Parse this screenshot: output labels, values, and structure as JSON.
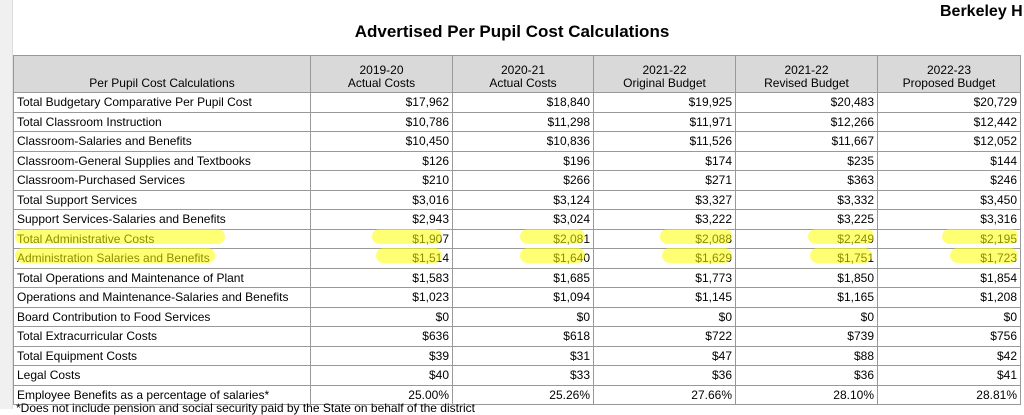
{
  "header": {
    "title": "Advertised Per Pupil Cost Calculations",
    "district": "Berkeley H"
  },
  "table": {
    "columns": [
      [
        "Per Pupil Cost Calculations"
      ],
      [
        "2019-20",
        "Actual Costs"
      ],
      [
        "2020-21",
        "Actual Costs"
      ],
      [
        "2021-22",
        "Original Budget"
      ],
      [
        "2021-22",
        "Revised Budget"
      ],
      [
        "2022-23",
        "Proposed Budget"
      ]
    ],
    "rows": [
      [
        "Total Budgetary Comparative Per Pupil Cost",
        "$17,962",
        "$18,840",
        "$19,925",
        "$20,483",
        "$20,729"
      ],
      [
        "Total Classroom Instruction",
        "$10,786",
        "$11,298",
        "$11,971",
        "$12,266",
        "$12,442"
      ],
      [
        "Classroom-Salaries and Benefits",
        "$10,450",
        "$10,836",
        "$11,526",
        "$11,667",
        "$12,052"
      ],
      [
        "Classroom-General Supplies and Textbooks",
        "$126",
        "$196",
        "$174",
        "$235",
        "$144"
      ],
      [
        "Classroom-Purchased Services",
        "$210",
        "$266",
        "$271",
        "$363",
        "$246"
      ],
      [
        "Total Support Services",
        "$3,016",
        "$3,124",
        "$3,327",
        "$3,332",
        "$3,450"
      ],
      [
        "Support Services-Salaries and Benefits",
        "$2,943",
        "$3,024",
        "$3,222",
        "$3,225",
        "$3,316"
      ],
      [
        "Total Administrative Costs",
        "$1,907",
        "$2,081",
        "$2,088",
        "$2,249",
        "$2,195"
      ],
      [
        "Administration Salaries and Benefits",
        "$1,514",
        "$1,640",
        "$1,629",
        "$1,751",
        "$1,723"
      ],
      [
        "Total Operations and Maintenance of Plant",
        "$1,583",
        "$1,685",
        "$1,773",
        "$1,850",
        "$1,854"
      ],
      [
        "Operations and Maintenance-Salaries and Benefits",
        "$1,023",
        "$1,094",
        "$1,145",
        "$1,165",
        "$1,208"
      ],
      [
        "Board Contribution to Food Services",
        "$0",
        "$0",
        "$0",
        "$0",
        "$0"
      ],
      [
        "Total Extracurricular Costs",
        "$636",
        "$618",
        "$722",
        "$739",
        "$756"
      ],
      [
        "Total Equipment Costs",
        "$39",
        "$31",
        "$47",
        "$88",
        "$42"
      ],
      [
        "Legal Costs",
        "$40",
        "$33",
        "$36",
        "$36",
        "$41"
      ],
      [
        "Employee Benefits as a percentage of salaries*",
        "25.00%",
        "25.26%",
        "27.66%",
        "28.10%",
        "28.81%"
      ]
    ]
  },
  "footnote": "*Does not include pension and social security paid by the State on behalf of the district"
}
